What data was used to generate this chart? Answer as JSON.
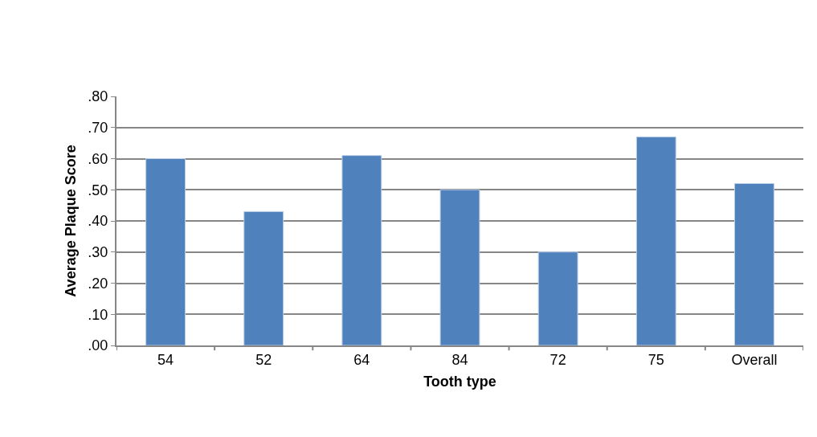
{
  "chart_data": {
    "type": "bar",
    "xlabel": "Tooth type",
    "ylabel": "Average Plaque Score",
    "categories": [
      "54",
      "52",
      "64",
      "84",
      "72",
      "75",
      "Overall"
    ],
    "values": [
      0.6,
      0.43,
      0.61,
      0.5,
      0.3,
      0.67,
      0.52
    ],
    "color": "#4f81bd",
    "ylim": [
      0,
      0.8
    ],
    "yticks": [
      {
        "value": 0,
        "label": ".00"
      },
      {
        "value": 0.1,
        "label": ".10"
      },
      {
        "value": 0.2,
        "label": ".20"
      },
      {
        "value": 0.3,
        "label": ".30"
      },
      {
        "value": 0.4,
        "label": ".40"
      },
      {
        "value": 0.5,
        "label": ".50"
      },
      {
        "value": 0.6,
        "label": ".60"
      },
      {
        "value": 0.7,
        "label": ".70"
      },
      {
        "value": 0.8,
        "label": ".80"
      }
    ],
    "grid": "y",
    "legend": false
  }
}
